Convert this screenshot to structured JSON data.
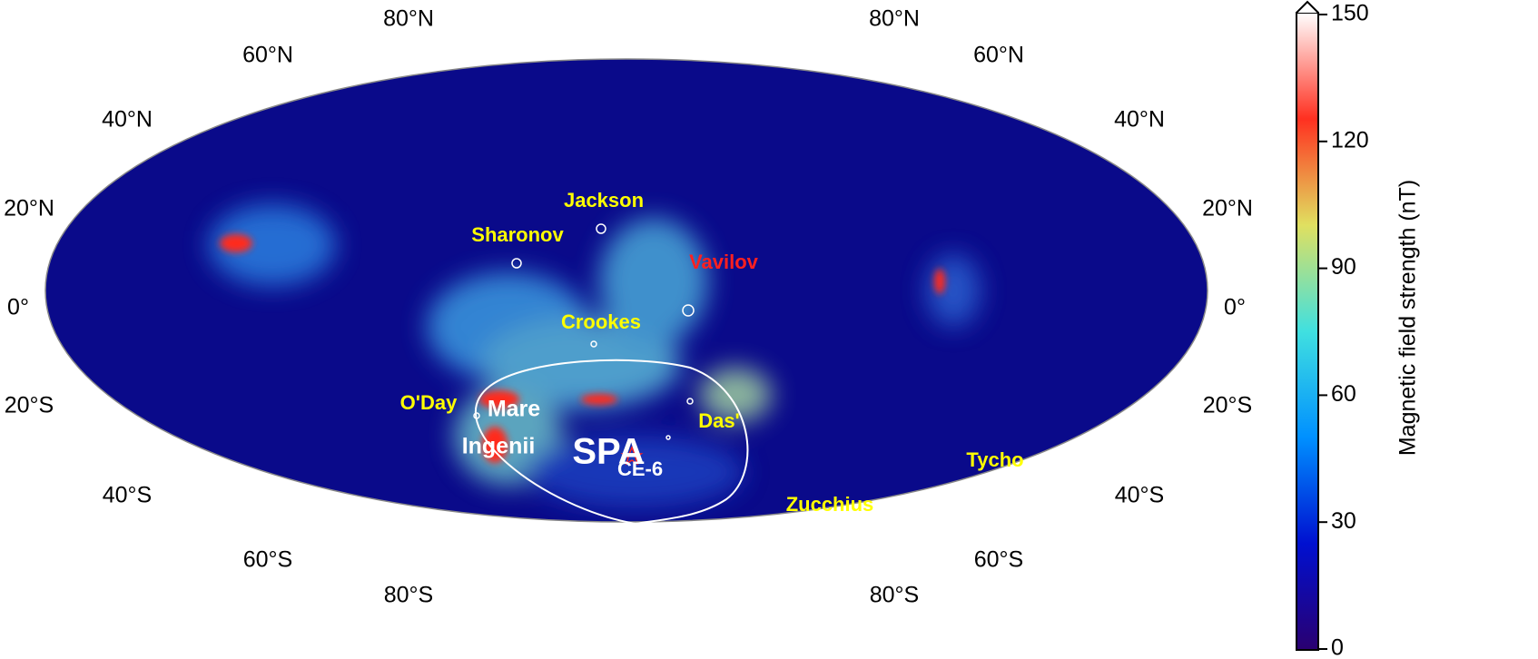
{
  "map": {
    "lat_labels_left": [
      "80°N",
      "60°N",
      "40°N",
      "20°N",
      "0°",
      "20°S",
      "40°S",
      "60°S",
      "80°S"
    ],
    "lat_labels_right": [
      "80°N",
      "60°N",
      "40°N",
      "20°N",
      "0°",
      "20°S",
      "40°S",
      "60°S",
      "80°S"
    ],
    "sites": [
      {
        "text": "Jackson",
        "color": "#ffff00"
      },
      {
        "text": "Sharonov",
        "color": "#ffff00"
      },
      {
        "text": "Vavilov",
        "color": "#ff2020"
      },
      {
        "text": "Crookes",
        "color": "#ffff00"
      },
      {
        "text": "O'Day",
        "color": "#ffff00"
      },
      {
        "text": "Das'",
        "color": "#ffff00"
      },
      {
        "text": "Mare",
        "color": "#ffffff"
      },
      {
        "text": "Ingenii",
        "color": "#ffffff"
      },
      {
        "text": "CE-6",
        "color": "#ffffff"
      },
      {
        "text": "SPA",
        "color": "#ffffff"
      },
      {
        "text": "Tycho",
        "color": "#ffff00"
      },
      {
        "text": "Zucchius",
        "color": "#ffff00"
      }
    ]
  },
  "colorbar": {
    "label": "Magnetic field strength (nT)",
    "lim": [
      0,
      150
    ],
    "ticks": [
      0,
      30,
      60,
      90,
      120,
      150
    ],
    "colors": [
      "#2a0070",
      "#0010d0",
      "#0090ff",
      "#40e0e0",
      "#e0e060",
      "#ff3020",
      "#ffffff"
    ]
  }
}
